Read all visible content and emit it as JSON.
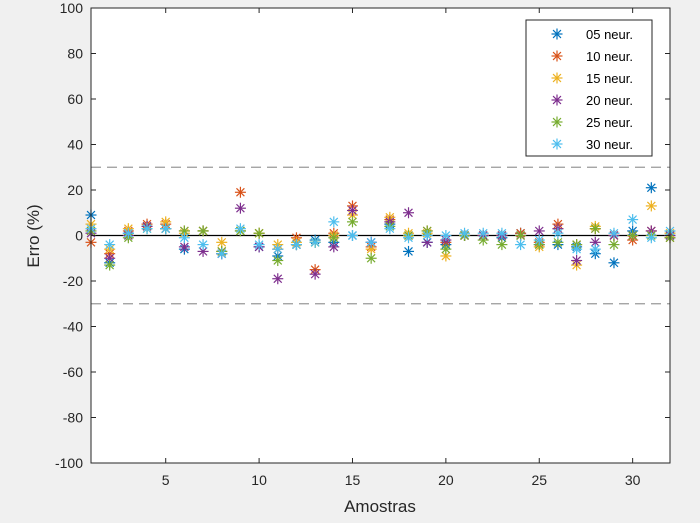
{
  "chart_data": {
    "type": "scatter",
    "title": "",
    "xlabel": "Amostras",
    "ylabel": "Erro (%)",
    "xlim": [
      1,
      32
    ],
    "ylim": [
      -100,
      100
    ],
    "xticks": [
      5,
      10,
      15,
      20,
      25,
      30
    ],
    "yticks": [
      -100,
      -80,
      -60,
      -40,
      -20,
      0,
      20,
      40,
      60,
      80,
      100
    ],
    "reference_lines": [
      {
        "y": 30,
        "style": "dashed",
        "color": "#9a9a9a"
      },
      {
        "y": -30,
        "style": "dashed",
        "color": "#9a9a9a"
      },
      {
        "y": 0,
        "style": "solid",
        "color": "#000000"
      }
    ],
    "legend_position": "top-right",
    "marker": "asterisk",
    "series": [
      {
        "name": "05 neur.",
        "color": "#0072BD",
        "x": [
          1,
          2,
          3,
          4,
          5,
          6,
          7,
          8,
          9,
          10,
          11,
          12,
          13,
          14,
          15,
          16,
          17,
          18,
          19,
          20,
          21,
          22,
          23,
          24,
          25,
          26,
          27,
          28,
          29,
          30,
          31,
          32
        ],
        "y": [
          9,
          -12,
          1,
          4,
          3,
          -6,
          2,
          -8,
          2,
          -5,
          -9,
          -4,
          -2,
          -3,
          0,
          -3,
          5,
          -7,
          -3,
          -4,
          0,
          0,
          -1,
          1,
          -4,
          -4,
          -5,
          -8,
          -12,
          2,
          21,
          0
        ]
      },
      {
        "name": "10 neur.",
        "color": "#D95319",
        "x": [
          1,
          2,
          3,
          4,
          5,
          6,
          7,
          8,
          9,
          10,
          11,
          12,
          13,
          14,
          15,
          16,
          17,
          18,
          19,
          20,
          21,
          22,
          23,
          24,
          25,
          26,
          27,
          28,
          29,
          30,
          31,
          32
        ],
        "y": [
          -3,
          -8,
          2,
          5,
          5,
          2,
          2,
          -7,
          19,
          1,
          -6,
          -1,
          -15,
          1,
          13,
          -5,
          7,
          0,
          2,
          -3,
          0,
          0,
          0,
          1,
          -3,
          5,
          -4,
          3,
          0,
          -2,
          2,
          -1
        ]
      },
      {
        "name": "15 neur.",
        "color": "#EDB120",
        "x": [
          1,
          2,
          3,
          4,
          5,
          6,
          7,
          8,
          9,
          10,
          11,
          12,
          13,
          14,
          15,
          16,
          17,
          18,
          19,
          20,
          21,
          22,
          23,
          24,
          25,
          26,
          27,
          28,
          29,
          30,
          31,
          32
        ],
        "y": [
          5,
          -6,
          3,
          4,
          6,
          1,
          2,
          -3,
          2,
          1,
          -4,
          -3,
          -3,
          0,
          9,
          -6,
          8,
          1,
          1,
          -9,
          0,
          0,
          0,
          0,
          -5,
          3,
          -13,
          4,
          0,
          0,
          13,
          1
        ]
      },
      {
        "name": "20 neur.",
        "color": "#7E2F8E",
        "x": [
          1,
          2,
          3,
          4,
          5,
          6,
          7,
          8,
          9,
          10,
          11,
          12,
          13,
          14,
          15,
          16,
          17,
          18,
          19,
          20,
          21,
          22,
          23,
          24,
          25,
          26,
          27,
          28,
          29,
          30,
          31,
          32
        ],
        "y": [
          1,
          -10,
          0,
          4,
          3,
          -5,
          -7,
          -8,
          12,
          -5,
          -19,
          -4,
          -17,
          -5,
          11,
          -3,
          6,
          10,
          -3,
          -2,
          0,
          0,
          0,
          0,
          2,
          3,
          -11,
          -3,
          0,
          0,
          2,
          0
        ]
      },
      {
        "name": "25 neur.",
        "color": "#77AC30",
        "x": [
          1,
          2,
          3,
          4,
          5,
          6,
          7,
          8,
          9,
          10,
          11,
          12,
          13,
          14,
          15,
          16,
          17,
          18,
          19,
          20,
          21,
          22,
          23,
          24,
          25,
          26,
          27,
          28,
          29,
          30,
          31,
          32
        ],
        "y": [
          2,
          -13,
          -1,
          3,
          3,
          2,
          2,
          -7,
          2,
          1,
          -11,
          -4,
          -3,
          -1,
          6,
          -10,
          4,
          0,
          2,
          -6,
          0,
          -2,
          -4,
          0,
          -4,
          -3,
          -4,
          3,
          -4,
          0,
          0,
          -1
        ]
      },
      {
        "name": "30 neur.",
        "color": "#4DBEEE",
        "x": [
          1,
          2,
          3,
          4,
          5,
          6,
          7,
          8,
          9,
          10,
          11,
          12,
          13,
          14,
          15,
          16,
          17,
          18,
          19,
          20,
          21,
          22,
          23,
          24,
          25,
          26,
          27,
          28,
          29,
          30,
          31,
          32
        ],
        "y": [
          3,
          -4,
          1,
          3,
          3,
          -1,
          -4,
          -8,
          3,
          -4,
          -6,
          -4,
          -3,
          6,
          0,
          -3,
          3,
          -1,
          0,
          0,
          1,
          1,
          1,
          -4,
          -2,
          1,
          -6,
          -6,
          1,
          7,
          -1,
          2
        ]
      }
    ]
  }
}
